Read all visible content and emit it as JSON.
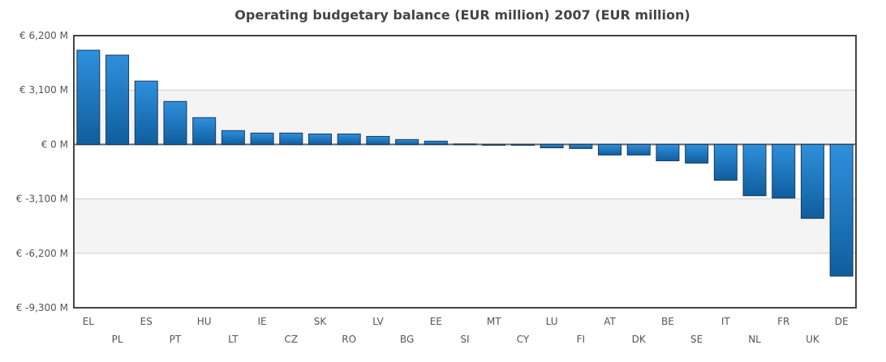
{
  "chart_data": {
    "type": "bar",
    "title": "Operating budgetary balance (EUR million) 2007 (EUR million)",
    "xlabel": "",
    "ylabel": "",
    "ylim": [
      -9300,
      6200
    ],
    "yticks": [
      6200,
      3100,
      0,
      -3100,
      -6200,
      -9300
    ],
    "ytick_labels": [
      "€ 6,200 M",
      "€ 3,100 M",
      "€ 0 M",
      "€ -3,100 M",
      "€ -6,200 M",
      "€ -9,300 M"
    ],
    "grid": true,
    "categories": [
      "EL",
      "PL",
      "ES",
      "PT",
      "HU",
      "LT",
      "IE",
      "CZ",
      "SK",
      "RO",
      "LV",
      "BG",
      "EE",
      "SI",
      "MT",
      "CY",
      "LU",
      "FI",
      "AT",
      "DK",
      "BE",
      "SE",
      "IT",
      "NL",
      "FR",
      "UK",
      "DE"
    ],
    "values": [
      5370,
      5090,
      3610,
      2450,
      1530,
      790,
      650,
      650,
      600,
      600,
      460,
      280,
      190,
      30,
      -20,
      -40,
      -190,
      -230,
      -600,
      -600,
      -930,
      -1060,
      -2040,
      -2920,
      -3050,
      -4210,
      -7500
    ],
    "colors": {
      "bar_top": "#2f90dc",
      "bar_bottom": "#0f5e9e",
      "bar_border": "#1b3b5a",
      "band": "#f4f4f4",
      "grid": "#cccccc",
      "frame": "#444444"
    }
  }
}
